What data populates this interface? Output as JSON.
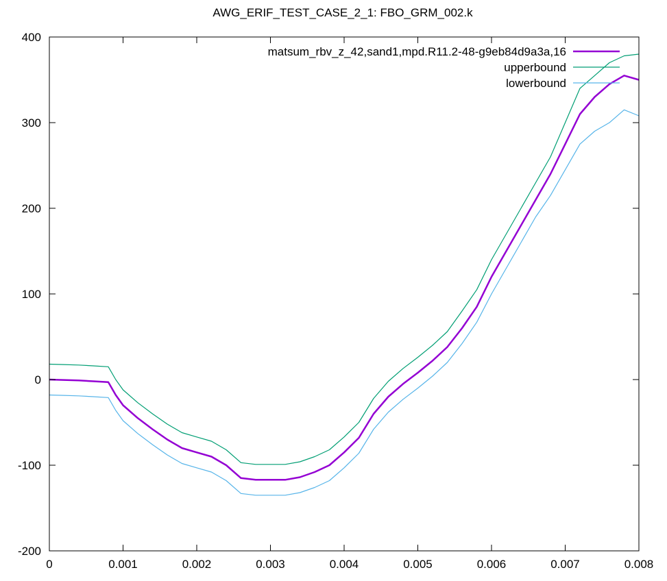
{
  "chart_data": {
    "type": "line",
    "title": "AWG_ERIF_TEST_CASE_2_1: FBO_GRM_002.k",
    "xlabel": "",
    "ylabel": "",
    "xlim": [
      0,
      0.008
    ],
    "ylim": [
      -200,
      400
    ],
    "x_ticks": [
      "0",
      "0.001",
      "0.002",
      "0.003",
      "0.004",
      "0.005",
      "0.006",
      "0.007",
      "0.008"
    ],
    "y_ticks": [
      "-200",
      "-100",
      "0",
      "100",
      "200",
      "300",
      "400"
    ],
    "grid": false,
    "legend_position": "top-right",
    "series": [
      {
        "name": "matsum_rbv_z_42,sand1,mpd.R11.2-48-g9eb84d9a3a,16",
        "color": "#9400d3",
        "x": [
          0,
          0.0002,
          0.0004,
          0.0006,
          0.0008,
          0.0009,
          0.001,
          0.0012,
          0.0014,
          0.0016,
          0.0018,
          0.002,
          0.0022,
          0.0024,
          0.0026,
          0.0028,
          0.003,
          0.0032,
          0.0034,
          0.0036,
          0.0038,
          0.004,
          0.0042,
          0.0044,
          0.0046,
          0.0048,
          0.005,
          0.0052,
          0.0054,
          0.0056,
          0.0058,
          0.006,
          0.0062,
          0.0064,
          0.0066,
          0.0068,
          0.007,
          0.0072,
          0.0074,
          0.0076,
          0.0078,
          0.008
        ],
        "y": [
          0,
          -0.5,
          -1,
          -2,
          -3,
          -18,
          -30,
          -45,
          -58,
          -70,
          -80,
          -85,
          -90,
          -100,
          -115,
          -117,
          -117,
          -117,
          -114,
          -108,
          -100,
          -85,
          -68,
          -40,
          -20,
          -5,
          8,
          22,
          38,
          60,
          85,
          120,
          150,
          180,
          210,
          240,
          275,
          310,
          330,
          345,
          355,
          350
        ]
      },
      {
        "name": "upperbound",
        "color": "#009e73",
        "x": [
          0,
          0.0002,
          0.0004,
          0.0006,
          0.0008,
          0.0009,
          0.001,
          0.0012,
          0.0014,
          0.0016,
          0.0018,
          0.002,
          0.0022,
          0.0024,
          0.0026,
          0.0028,
          0.003,
          0.0032,
          0.0034,
          0.0036,
          0.0038,
          0.004,
          0.0042,
          0.0044,
          0.0046,
          0.0048,
          0.005,
          0.0052,
          0.0054,
          0.0056,
          0.0058,
          0.006,
          0.0062,
          0.0064,
          0.0066,
          0.0068,
          0.007,
          0.0072,
          0.0074,
          0.0076,
          0.0078,
          0.008
        ],
        "y": [
          18,
          17.5,
          17,
          16,
          15,
          0,
          -12,
          -27,
          -40,
          -52,
          -62,
          -67,
          -72,
          -82,
          -97,
          -99,
          -99,
          -99,
          -96,
          -90,
          -82,
          -67,
          -50,
          -22,
          -2,
          13,
          26,
          40,
          56,
          80,
          105,
          140,
          170,
          200,
          230,
          260,
          300,
          340,
          355,
          370,
          378,
          380
        ]
      },
      {
        "name": "lowerbound",
        "color": "#56b4e9",
        "x": [
          0,
          0.0002,
          0.0004,
          0.0006,
          0.0008,
          0.0009,
          0.001,
          0.0012,
          0.0014,
          0.0016,
          0.0018,
          0.002,
          0.0022,
          0.0024,
          0.0026,
          0.0028,
          0.003,
          0.0032,
          0.0034,
          0.0036,
          0.0038,
          0.004,
          0.0042,
          0.0044,
          0.0046,
          0.0048,
          0.005,
          0.0052,
          0.0054,
          0.0056,
          0.0058,
          0.006,
          0.0062,
          0.0064,
          0.0066,
          0.0068,
          0.007,
          0.0072,
          0.0074,
          0.0076,
          0.0078,
          0.008
        ],
        "y": [
          -18,
          -18.5,
          -19,
          -20,
          -21,
          -36,
          -48,
          -63,
          -76,
          -88,
          -98,
          -103,
          -108,
          -118,
          -133,
          -135,
          -135,
          -135,
          -132,
          -126,
          -118,
          -103,
          -86,
          -58,
          -38,
          -23,
          -10,
          4,
          20,
          42,
          67,
          100,
          130,
          160,
          190,
          215,
          245,
          275,
          290,
          300,
          315,
          308
        ]
      }
    ]
  }
}
